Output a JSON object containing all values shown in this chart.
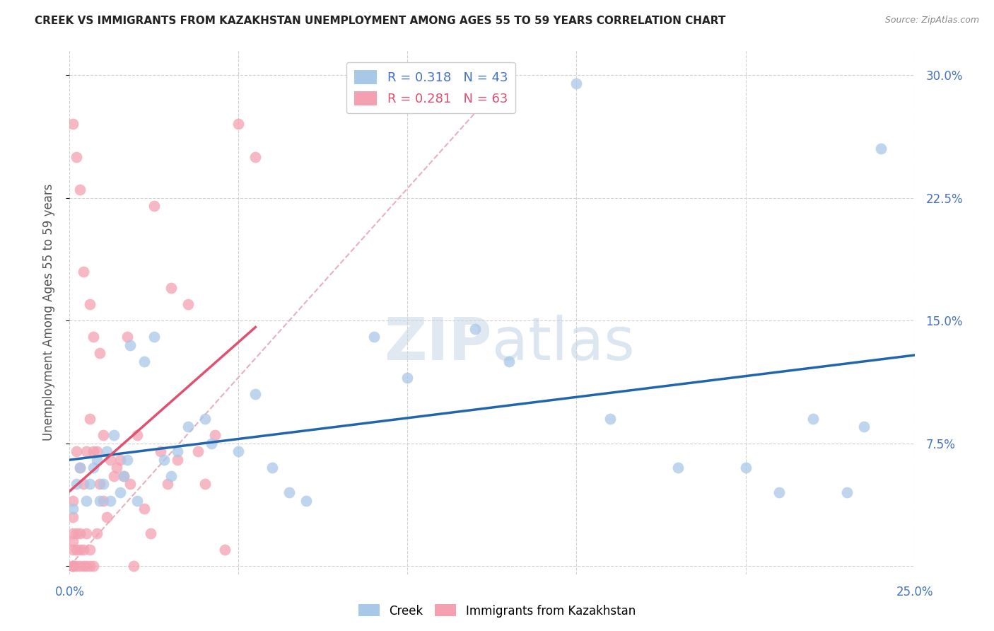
{
  "title": "CREEK VS IMMIGRANTS FROM KAZAKHSTAN UNEMPLOYMENT AMONG AGES 55 TO 59 YEARS CORRELATION CHART",
  "source": "Source: ZipAtlas.com",
  "ylabel": "Unemployment Among Ages 55 to 59 years",
  "xlim": [
    0,
    0.25
  ],
  "ylim": [
    -0.005,
    0.315
  ],
  "creek_color": "#a8c8e8",
  "creek_line_color": "#2166ac",
  "kazakhstan_color": "#f4a0b0",
  "kazakhstan_line_color": "#e05070",
  "diag_color": "#e8b0bc",
  "grid_color": "#d0d0d0",
  "right_axis_color": "#4472c4",
  "title_color": "#222222",
  "source_color": "#888888",
  "watermark_color": "#d8e8f4",
  "creek_x": [
    0.001,
    0.002,
    0.003,
    0.005,
    0.006,
    0.007,
    0.008,
    0.009,
    0.01,
    0.011,
    0.012,
    0.013,
    0.015,
    0.016,
    0.017,
    0.018,
    0.02,
    0.022,
    0.025,
    0.028,
    0.03,
    0.032,
    0.035,
    0.04,
    0.042,
    0.05,
    0.055,
    0.06,
    0.065,
    0.07,
    0.09,
    0.1,
    0.12,
    0.13,
    0.15,
    0.16,
    0.18,
    0.2,
    0.21,
    0.22,
    0.23,
    0.235,
    0.24
  ],
  "creek_y": [
    0.035,
    0.05,
    0.06,
    0.04,
    0.05,
    0.06,
    0.065,
    0.04,
    0.05,
    0.07,
    0.04,
    0.08,
    0.045,
    0.055,
    0.065,
    0.135,
    0.04,
    0.125,
    0.14,
    0.065,
    0.055,
    0.07,
    0.085,
    0.09,
    0.075,
    0.07,
    0.105,
    0.06,
    0.045,
    0.04,
    0.14,
    0.115,
    0.145,
    0.125,
    0.295,
    0.09,
    0.06,
    0.06,
    0.045,
    0.09,
    0.045,
    0.085,
    0.255
  ],
  "kazakhstan_x": [
    0.001,
    0.001,
    0.001,
    0.001,
    0.001,
    0.001,
    0.001,
    0.001,
    0.001,
    0.002,
    0.002,
    0.002,
    0.002,
    0.002,
    0.003,
    0.003,
    0.003,
    0.003,
    0.003,
    0.004,
    0.004,
    0.004,
    0.004,
    0.005,
    0.005,
    0.005,
    0.006,
    0.006,
    0.006,
    0.006,
    0.007,
    0.007,
    0.007,
    0.008,
    0.008,
    0.009,
    0.009,
    0.01,
    0.01,
    0.011,
    0.012,
    0.013,
    0.014,
    0.015,
    0.016,
    0.017,
    0.018,
    0.019,
    0.02,
    0.022,
    0.024,
    0.025,
    0.027,
    0.029,
    0.03,
    0.032,
    0.035,
    0.038,
    0.04,
    0.043,
    0.046,
    0.05,
    0.055
  ],
  "kazakhstan_y": [
    0.0,
    0.0,
    0.0,
    0.01,
    0.015,
    0.02,
    0.03,
    0.04,
    0.27,
    0.0,
    0.01,
    0.02,
    0.07,
    0.25,
    0.0,
    0.01,
    0.02,
    0.06,
    0.23,
    0.0,
    0.01,
    0.05,
    0.18,
    0.0,
    0.02,
    0.07,
    0.0,
    0.01,
    0.09,
    0.16,
    0.0,
    0.07,
    0.14,
    0.02,
    0.07,
    0.05,
    0.13,
    0.04,
    0.08,
    0.03,
    0.065,
    0.055,
    0.06,
    0.065,
    0.055,
    0.14,
    0.05,
    0.0,
    0.08,
    0.035,
    0.02,
    0.22,
    0.07,
    0.05,
    0.17,
    0.065,
    0.16,
    0.07,
    0.05,
    0.08,
    0.01,
    0.27,
    0.25
  ]
}
